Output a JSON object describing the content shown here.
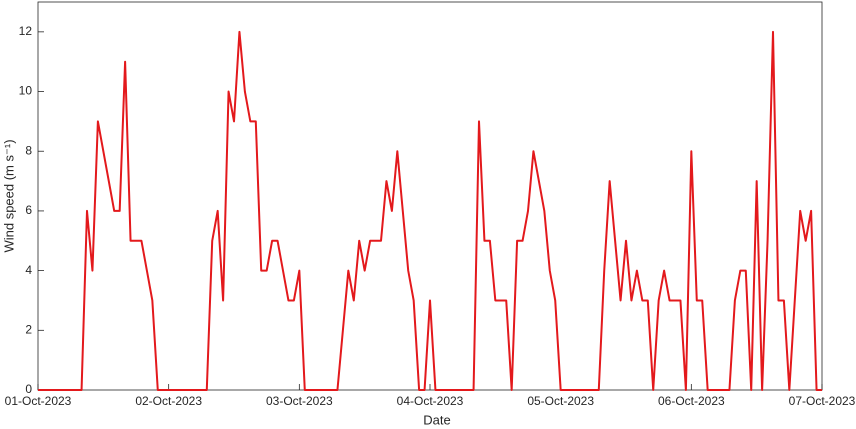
{
  "chart_data": {
    "type": "line",
    "xlabel": "Date",
    "ylabel": "Wind speed (m s⁻¹)",
    "color": "#e3191c",
    "values": [
      0,
      0,
      0,
      0,
      0,
      0,
      0,
      0,
      0,
      6,
      4,
      9,
      8,
      7,
      6,
      6,
      11,
      5,
      5,
      5,
      4,
      3,
      0,
      0,
      0,
      0,
      0,
      0,
      0,
      0,
      0,
      0,
      5,
      6,
      3,
      10,
      9,
      12,
      10,
      9,
      9,
      4,
      4,
      5,
      5,
      4,
      3,
      3,
      4,
      0,
      0,
      0,
      0,
      0,
      0,
      0,
      2,
      4,
      3,
      5,
      4,
      5,
      5,
      5,
      7,
      6,
      8,
      6,
      4,
      3,
      0,
      0,
      3,
      0,
      0,
      0,
      0,
      0,
      0,
      0,
      0,
      9,
      5,
      5,
      3,
      3,
      3,
      0,
      5,
      5,
      6,
      8,
      7,
      6,
      4,
      3,
      0,
      0,
      0,
      0,
      0,
      0,
      0,
      0,
      4,
      7,
      5,
      3,
      5,
      3,
      4,
      3,
      3,
      0,
      3,
      4,
      3,
      3,
      3,
      0,
      8,
      3,
      3,
      0,
      0,
      0,
      0,
      0,
      3,
      4,
      4,
      0,
      7,
      0,
      5,
      12,
      3,
      3,
      0,
      3,
      6,
      5,
      6,
      0,
      0
    ],
    "xlim": [
      0,
      144
    ],
    "xticks": [
      {
        "value": 0,
        "label": "01-Oct-2023"
      },
      {
        "value": 24,
        "label": "02-Oct-2023"
      },
      {
        "value": 48,
        "label": "03-Oct-2023"
      },
      {
        "value": 72,
        "label": "04-Oct-2023"
      },
      {
        "value": 96,
        "label": "05-Oct-2023"
      },
      {
        "value": 120,
        "label": "06-Oct-2023"
      },
      {
        "value": 144,
        "label": "07-Oct-2023"
      }
    ],
    "ylim": [
      0,
      13
    ],
    "yticks": [
      0,
      2,
      4,
      6,
      8,
      10,
      12
    ],
    "grid": false
  }
}
